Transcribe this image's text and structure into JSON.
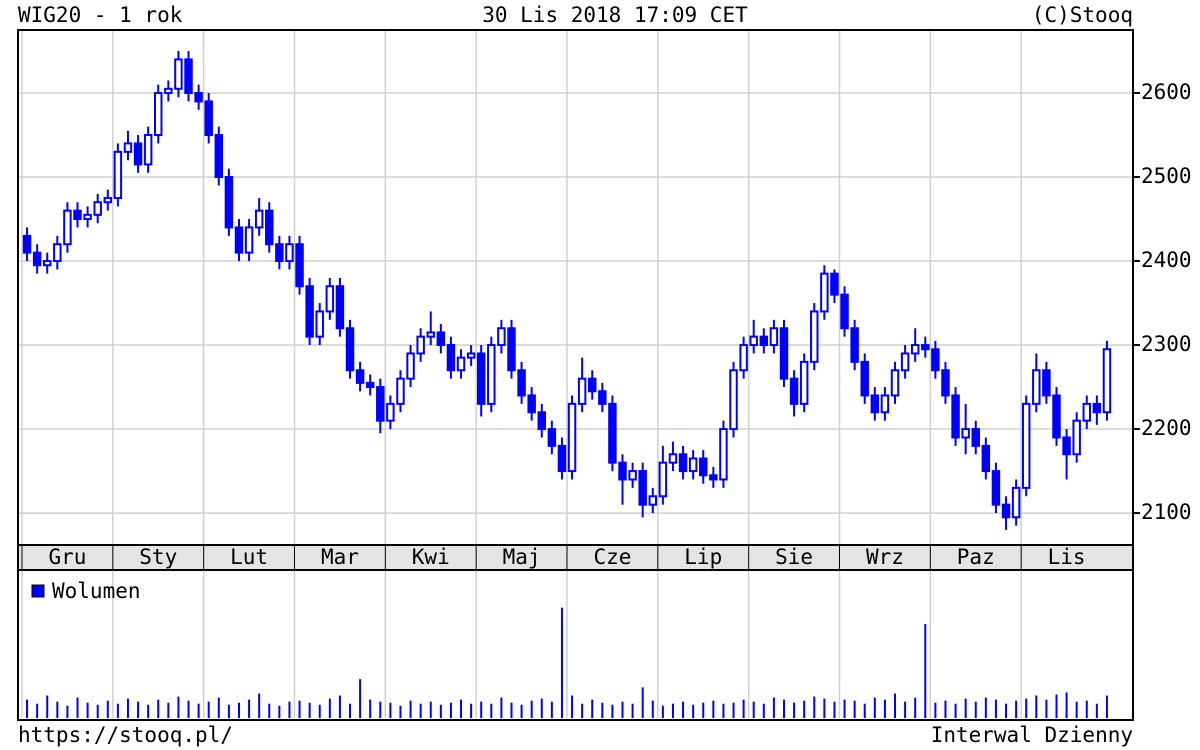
{
  "chart_data": {
    "type": "candlestick",
    "title": "WIG20 - 1 rok",
    "subtitle": "30 Lis 2018 17:09 CET",
    "source": "(C)Stooq",
    "url": "https://stooq.pl/",
    "interval": "Interwal Dzienny",
    "color": "#0000ff",
    "grid": true,
    "open": [
      2430,
      2410,
      2395,
      2400,
      2420,
      2460,
      2450,
      2455,
      2470,
      2475,
      2530,
      2540,
      2515,
      2550,
      2600,
      2605,
      2640,
      2600,
      2590,
      2550,
      2500,
      2440,
      2410,
      2440,
      2460,
      2420,
      2400,
      2420,
      2370,
      2310,
      2340,
      2370,
      2320,
      2270,
      2255,
      2250,
      2210,
      2230,
      2260,
      2290,
      2310,
      2315,
      2300,
      2270,
      2285,
      2290,
      2230,
      2300,
      2320,
      2270,
      2240,
      2220,
      2200,
      2180,
      2150,
      2230,
      2260,
      2245,
      2230,
      2160,
      2140,
      2150,
      2110,
      2120,
      2160,
      2170,
      2150,
      2165,
      2145,
      2140,
      2200,
      2270,
      2300,
      2310,
      2300,
      2320,
      2260,
      2230,
      2280,
      2340,
      2385,
      2360,
      2320,
      2280,
      2240,
      2220,
      2240,
      2270,
      2290,
      2300,
      2295,
      2270,
      2240,
      2190,
      2200,
      2180,
      2150,
      2110,
      2095,
      2130,
      2230,
      2270,
      2240,
      2190,
      2170,
      2210,
      2230,
      2220
    ],
    "high": [
      2440,
      2420,
      2410,
      2430,
      2470,
      2470,
      2465,
      2480,
      2485,
      2540,
      2555,
      2550,
      2560,
      2610,
      2615,
      2650,
      2650,
      2610,
      2600,
      2560,
      2510,
      2450,
      2450,
      2475,
      2470,
      2430,
      2430,
      2430,
      2380,
      2350,
      2380,
      2380,
      2330,
      2280,
      2265,
      2260,
      2240,
      2270,
      2300,
      2320,
      2340,
      2325,
      2310,
      2295,
      2300,
      2300,
      2310,
      2330,
      2330,
      2280,
      2250,
      2230,
      2210,
      2190,
      2240,
      2285,
      2270,
      2255,
      2240,
      2170,
      2160,
      2160,
      2130,
      2180,
      2185,
      2180,
      2175,
      2175,
      2155,
      2210,
      2280,
      2310,
      2330,
      2320,
      2330,
      2330,
      2270,
      2290,
      2350,
      2395,
      2390,
      2370,
      2330,
      2290,
      2250,
      2250,
      2280,
      2300,
      2320,
      2310,
      2305,
      2280,
      2250,
      2230,
      2210,
      2190,
      2160,
      2120,
      2140,
      2240,
      2290,
      2280,
      2250,
      2200,
      2220,
      2240,
      2240,
      2305
    ],
    "low": [
      2400,
      2385,
      2385,
      2390,
      2410,
      2440,
      2440,
      2445,
      2460,
      2465,
      2520,
      2505,
      2505,
      2540,
      2590,
      2595,
      2590,
      2580,
      2540,
      2490,
      2430,
      2400,
      2400,
      2430,
      2410,
      2390,
      2390,
      2360,
      2300,
      2300,
      2330,
      2310,
      2260,
      2245,
      2240,
      2195,
      2200,
      2220,
      2250,
      2280,
      2300,
      2290,
      2260,
      2260,
      2275,
      2215,
      2220,
      2290,
      2260,
      2230,
      2210,
      2190,
      2170,
      2140,
      2140,
      2220,
      2235,
      2220,
      2150,
      2110,
      2130,
      2095,
      2100,
      2110,
      2150,
      2140,
      2140,
      2135,
      2130,
      2130,
      2190,
      2260,
      2290,
      2290,
      2290,
      2250,
      2215,
      2220,
      2270,
      2330,
      2350,
      2310,
      2270,
      2230,
      2210,
      2210,
      2230,
      2260,
      2280,
      2285,
      2260,
      2230,
      2180,
      2170,
      2170,
      2140,
      2100,
      2080,
      2085,
      2120,
      2220,
      2230,
      2180,
      2140,
      2160,
      2200,
      2205,
      2210
    ],
    "close": [
      2410,
      2395,
      2400,
      2420,
      2460,
      2450,
      2455,
      2470,
      2475,
      2530,
      2540,
      2515,
      2550,
      2600,
      2605,
      2640,
      2600,
      2590,
      2550,
      2500,
      2440,
      2410,
      2440,
      2460,
      2420,
      2400,
      2420,
      2370,
      2310,
      2340,
      2370,
      2320,
      2270,
      2255,
      2250,
      2210,
      2230,
      2260,
      2290,
      2310,
      2315,
      2300,
      2270,
      2285,
      2290,
      2230,
      2300,
      2320,
      2270,
      2240,
      2220,
      2200,
      2180,
      2150,
      2230,
      2260,
      2245,
      2230,
      2160,
      2140,
      2150,
      2110,
      2120,
      2160,
      2170,
      2150,
      2165,
      2145,
      2140,
      2200,
      2270,
      2300,
      2310,
      2300,
      2320,
      2260,
      2230,
      2280,
      2340,
      2385,
      2360,
      2320,
      2280,
      2240,
      2220,
      2240,
      2270,
      2290,
      2300,
      2295,
      2270,
      2240,
      2190,
      2200,
      2180,
      2150,
      2110,
      2095,
      2130,
      2230,
      2270,
      2240,
      2190,
      2170,
      2210,
      2230,
      2220,
      2295
    ],
    "ylim": [
      2062,
      2675
    ],
    "yticks": [
      2100,
      2200,
      2300,
      2400,
      2500,
      2600
    ],
    "xlim": [
      0,
      108
    ],
    "xticks": [
      {
        "value": 0,
        "label": "Gru"
      },
      {
        "value": 9,
        "label": "Sty"
      },
      {
        "value": 18,
        "label": "Lut"
      },
      {
        "value": 27,
        "label": "Mar"
      },
      {
        "value": 36,
        "label": "Kwi"
      },
      {
        "value": 45,
        "label": "Maj"
      },
      {
        "value": 54,
        "label": "Cze"
      },
      {
        "value": 63,
        "label": "Lip"
      },
      {
        "value": 72,
        "label": "Sie"
      },
      {
        "value": 81,
        "label": "Wrz"
      },
      {
        "value": 90,
        "label": "Paz"
      },
      {
        "value": 99,
        "label": "Lis"
      }
    ],
    "volume": {
      "name": "Wolumen",
      "color": "#0000ff",
      "ylim": [
        0,
        140
      ],
      "values": [
        18,
        14,
        22,
        16,
        12,
        20,
        15,
        13,
        17,
        14,
        19,
        16,
        13,
        18,
        15,
        21,
        17,
        14,
        16,
        20,
        13,
        15,
        18,
        24,
        14,
        12,
        16,
        17,
        15,
        13,
        19,
        22,
        14,
        38,
        18,
        16,
        15,
        12,
        17,
        14,
        16,
        13,
        15,
        18,
        14,
        16,
        14,
        20,
        15,
        13,
        17,
        19,
        16,
        108,
        22,
        14,
        18,
        15,
        13,
        16,
        14,
        30,
        17,
        12,
        14,
        16,
        13,
        15,
        17,
        14,
        15,
        18,
        16,
        14,
        20,
        18,
        15,
        17,
        21,
        19,
        16,
        18,
        17,
        14,
        20,
        18,
        24,
        16,
        20,
        92,
        15,
        17,
        14,
        19,
        16,
        20,
        18,
        14,
        17,
        19,
        22,
        18,
        23,
        25,
        16,
        17,
        14,
        22
      ]
    }
  }
}
